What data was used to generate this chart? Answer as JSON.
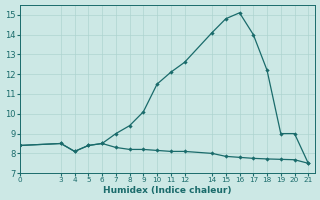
{
  "xlabel": "Humidex (Indice chaleur)",
  "xlim": [
    0,
    21.5
  ],
  "ylim": [
    7,
    15.5
  ],
  "yticks": [
    7,
    8,
    9,
    10,
    11,
    12,
    13,
    14,
    15
  ],
  "xticks": [
    0,
    3,
    4,
    5,
    6,
    7,
    8,
    9,
    10,
    11,
    12,
    14,
    15,
    16,
    17,
    18,
    19,
    20,
    21
  ],
  "bg_color": "#cce8e5",
  "line_color": "#1a6b6b",
  "grid_color": "#aed4d0",
  "upper_x": [
    0,
    3,
    4,
    5,
    6,
    7,
    8,
    9,
    10,
    11,
    12,
    14,
    15,
    16,
    17,
    18,
    19,
    20,
    21
  ],
  "upper_y": [
    8.4,
    8.5,
    8.1,
    8.4,
    8.5,
    9.0,
    9.4,
    10.1,
    11.5,
    12.1,
    12.6,
    14.1,
    14.8,
    15.1,
    14.0,
    12.2,
    9.0,
    9.0,
    7.5
  ],
  "lower_x": [
    0,
    3,
    4,
    5,
    6,
    7,
    8,
    9,
    10,
    11,
    12,
    14,
    15,
    16,
    17,
    18,
    19,
    20,
    21
  ],
  "lower_y": [
    8.4,
    8.5,
    8.1,
    8.4,
    8.5,
    8.3,
    8.2,
    8.2,
    8.15,
    8.1,
    8.1,
    8.0,
    7.85,
    7.8,
    7.75,
    7.72,
    7.7,
    7.68,
    7.5
  ]
}
